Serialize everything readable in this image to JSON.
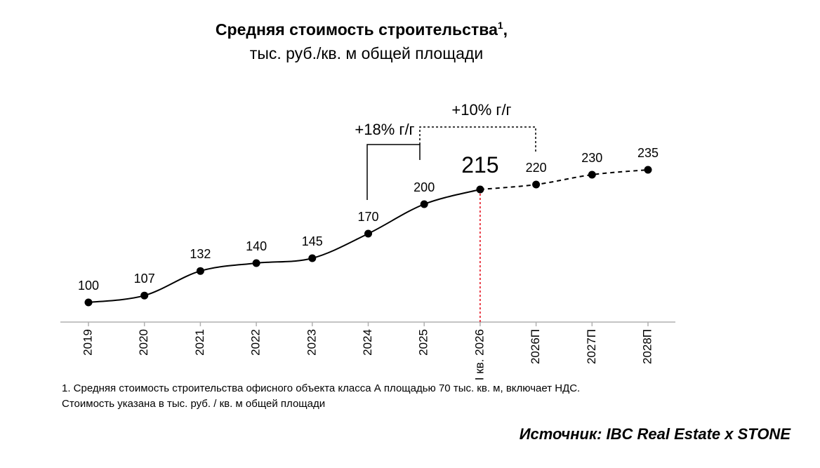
{
  "chart_data": {
    "type": "line",
    "title": "Средняя стоимость строительства",
    "title_superscript": "1",
    "title_suffix": ",",
    "subtitle": "тыс. руб./кв. м общей площади",
    "categories": [
      "2019",
      "2020",
      "2021",
      "2022",
      "2023",
      "2024",
      "2025",
      "I кв. 2026",
      "2026П",
      "2027П",
      "2028П"
    ],
    "values": [
      100,
      107,
      132,
      140,
      145,
      170,
      200,
      215,
      220,
      230,
      235
    ],
    "color": "#000000",
    "highlight_color": "#e30613",
    "highlight_index": 7,
    "dashed_from_index": 7,
    "ylim": [
      80,
      300
    ],
    "annotations": [
      "+18% г/г",
      "+10% г/г"
    ],
    "footnote": [
      "1. Средняя стоимость строительства офисного объекта класса А площадью 70 тыс. кв. м, включает НДС.",
      "Стоимость указана в тыс. руб. / кв. м общей площади"
    ],
    "source": "Источник: IBC Real Estate x STONE"
  }
}
